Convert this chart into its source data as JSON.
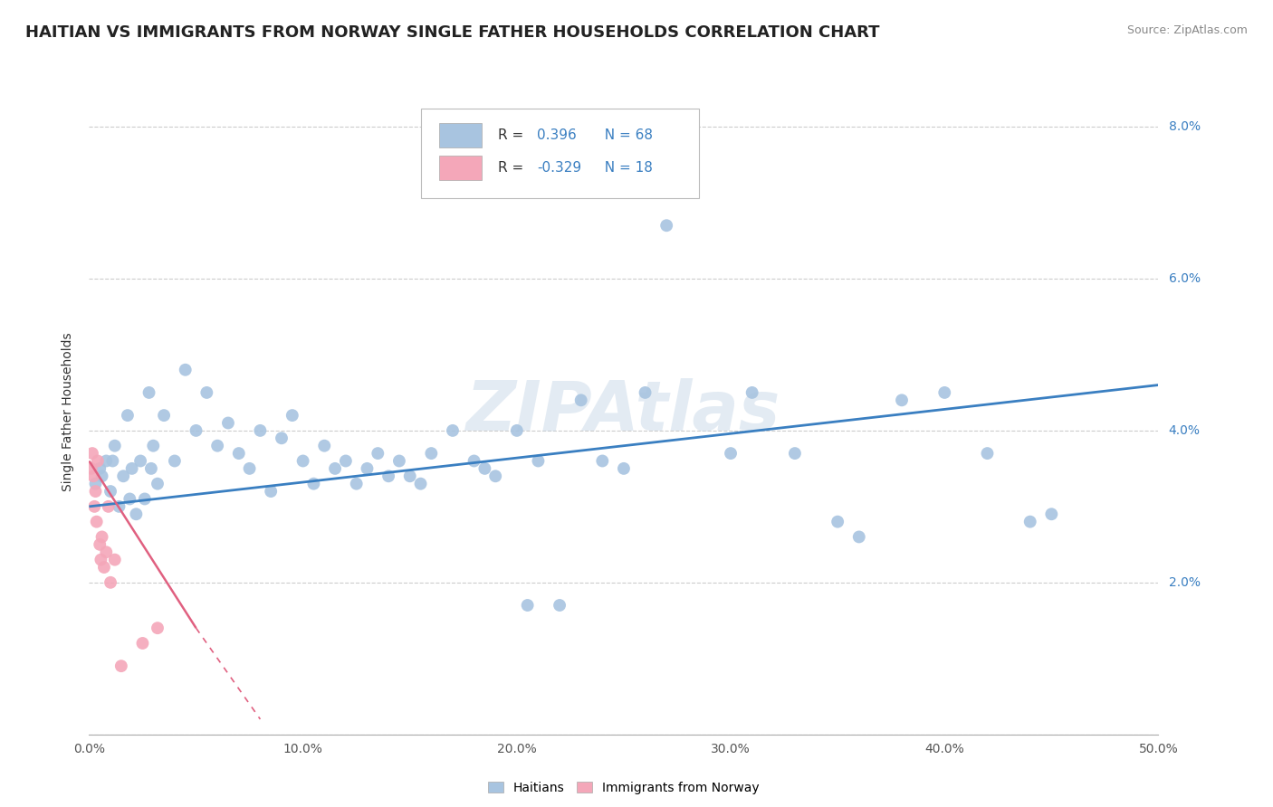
{
  "title": "HAITIAN VS IMMIGRANTS FROM NORWAY SINGLE FATHER HOUSEHOLDS CORRELATION CHART",
  "source": "Source: ZipAtlas.com",
  "ylabel": "Single Father Households",
  "watermark": "ZIPAtlas",
  "legend_entries": [
    {
      "label": "Haitians",
      "color": "#a8c4e0",
      "R": "0.396",
      "N": "68"
    },
    {
      "label": "Immigrants from Norway",
      "color": "#f4a7b9",
      "R": "-0.329",
      "N": "18"
    }
  ],
  "blue_scatter": [
    [
      0.3,
      3.3
    ],
    [
      0.5,
      3.5
    ],
    [
      0.8,
      3.6
    ],
    [
      1.0,
      3.2
    ],
    [
      1.2,
      3.8
    ],
    [
      1.4,
      3.0
    ],
    [
      1.6,
      3.4
    ],
    [
      1.8,
      4.2
    ],
    [
      2.0,
      3.5
    ],
    [
      2.2,
      2.9
    ],
    [
      2.4,
      3.6
    ],
    [
      2.6,
      3.1
    ],
    [
      2.8,
      4.5
    ],
    [
      3.0,
      3.8
    ],
    [
      3.2,
      3.3
    ],
    [
      3.5,
      4.2
    ],
    [
      4.0,
      3.6
    ],
    [
      4.5,
      4.8
    ],
    [
      5.0,
      4.0
    ],
    [
      5.5,
      4.5
    ],
    [
      6.0,
      3.8
    ],
    [
      6.5,
      4.1
    ],
    [
      7.0,
      3.7
    ],
    [
      7.5,
      3.5
    ],
    [
      8.0,
      4.0
    ],
    [
      8.5,
      3.2
    ],
    [
      9.0,
      3.9
    ],
    [
      9.5,
      4.2
    ],
    [
      10.0,
      3.6
    ],
    [
      10.5,
      3.3
    ],
    [
      11.0,
      3.8
    ],
    [
      11.5,
      3.5
    ],
    [
      12.0,
      3.6
    ],
    [
      12.5,
      3.3
    ],
    [
      13.0,
      3.5
    ],
    [
      13.5,
      3.7
    ],
    [
      14.0,
      3.4
    ],
    [
      14.5,
      3.6
    ],
    [
      15.0,
      3.4
    ],
    [
      15.5,
      3.3
    ],
    [
      16.0,
      3.7
    ],
    [
      17.0,
      4.0
    ],
    [
      18.0,
      3.6
    ],
    [
      18.5,
      3.5
    ],
    [
      19.0,
      3.4
    ],
    [
      20.0,
      4.0
    ],
    [
      20.5,
      1.7
    ],
    [
      21.0,
      3.6
    ],
    [
      22.0,
      1.7
    ],
    [
      23.0,
      4.4
    ],
    [
      24.0,
      3.6
    ],
    [
      25.0,
      3.5
    ],
    [
      26.0,
      4.5
    ],
    [
      27.0,
      6.7
    ],
    [
      30.0,
      3.7
    ],
    [
      31.0,
      4.5
    ],
    [
      33.0,
      3.7
    ],
    [
      35.0,
      2.8
    ],
    [
      36.0,
      2.6
    ],
    [
      38.0,
      4.4
    ],
    [
      40.0,
      4.5
    ],
    [
      42.0,
      3.7
    ],
    [
      44.0,
      2.8
    ],
    [
      45.0,
      2.9
    ],
    [
      0.6,
      3.4
    ],
    [
      1.1,
      3.6
    ],
    [
      1.9,
      3.1
    ],
    [
      2.9,
      3.5
    ]
  ],
  "pink_scatter": [
    [
      0.1,
      3.5
    ],
    [
      0.15,
      3.7
    ],
    [
      0.2,
      3.4
    ],
    [
      0.25,
      3.0
    ],
    [
      0.3,
      3.2
    ],
    [
      0.35,
      2.8
    ],
    [
      0.4,
      3.6
    ],
    [
      0.5,
      2.5
    ],
    [
      0.55,
      2.3
    ],
    [
      0.6,
      2.6
    ],
    [
      0.7,
      2.2
    ],
    [
      0.8,
      2.4
    ],
    [
      0.9,
      3.0
    ],
    [
      1.0,
      2.0
    ],
    [
      1.2,
      2.3
    ],
    [
      1.5,
      0.9
    ],
    [
      2.5,
      1.2
    ],
    [
      3.2,
      1.4
    ]
  ],
  "blue_line": [
    [
      0,
      3.0
    ],
    [
      50,
      4.6
    ]
  ],
  "pink_line": [
    [
      0,
      3.6
    ],
    [
      5.0,
      1.4
    ]
  ],
  "xlim": [
    0,
    50
  ],
  "ylim": [
    0,
    8.5
  ],
  "xticks": [
    0,
    10,
    20,
    30,
    40,
    50
  ],
  "xtick_labels": [
    "0.0%",
    "10.0%",
    "20.0%",
    "30.0%",
    "40.0%",
    "50.0%"
  ],
  "ytick_vals": [
    0,
    2,
    4,
    6,
    8
  ],
  "ytick_labels_right": [
    "",
    "2.0%",
    "4.0%",
    "6.0%",
    "8.0%"
  ],
  "grid_color": "#cccccc",
  "background_color": "#ffffff",
  "scatter_size": 100,
  "blue_color": "#a8c4e0",
  "pink_color": "#f4a7b9",
  "blue_line_color": "#3a7fc1",
  "pink_line_color": "#e06080",
  "title_fontsize": 13,
  "axis_label_fontsize": 10,
  "tick_fontsize": 10,
  "legend_R_color": "#3a7fc1",
  "source_color": "#888888"
}
